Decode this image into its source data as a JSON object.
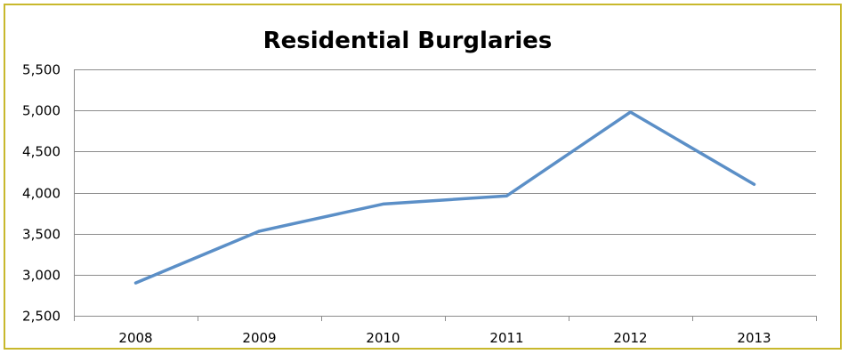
{
  "chart_data": {
    "type": "line",
    "title": "Residential Burglaries",
    "xlabel": "",
    "ylabel": "",
    "categories": [
      "2008",
      "2009",
      "2010",
      "2011",
      "2012",
      "2013"
    ],
    "series": [
      {
        "values": [
          2900,
          3530,
          3860,
          3960,
          4980,
          4100
        ]
      }
    ],
    "ylim": [
      2500,
      5500
    ],
    "yticks": [
      2500,
      3000,
      3500,
      4000,
      4500,
      5000,
      5500
    ],
    "ytick_labels": [
      "2,500",
      "3,000",
      "3,500",
      "4,000",
      "4,500",
      "5,000",
      "5,500"
    ],
    "grid": true,
    "legend": "none",
    "colors": {
      "line": "#5b8fc7",
      "grid": "#8c8c8c",
      "border": "#c8b82c"
    }
  }
}
